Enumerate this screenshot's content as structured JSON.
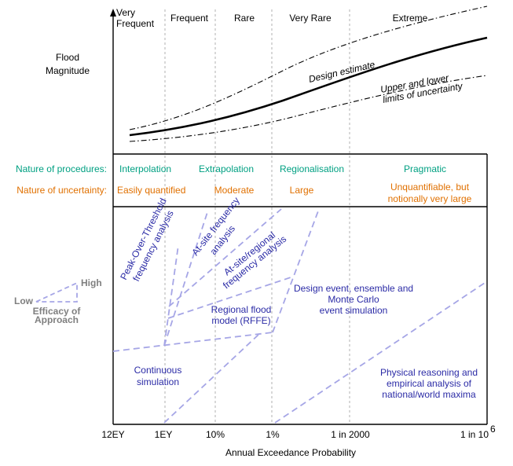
{
  "colors": {
    "procedure": "#00a082",
    "uncertainty": "#e07000",
    "method_text": "#2b2ba6",
    "method_line": "#a6a6e6",
    "legend_text": "#7f7f7f"
  },
  "y_axis": {
    "title": [
      "Flood",
      "Magnitude"
    ]
  },
  "x_axis": {
    "title": "Annual  Exceedance Probability",
    "ticks": [
      "12EY",
      "1EY",
      "10%",
      "1%",
      "1 in 2000",
      "1 in 10"
    ],
    "last_tick_superscript": "6"
  },
  "categories": {
    "very_frequent": [
      "Very",
      "Frequent"
    ],
    "items": [
      "Frequent",
      "Rare",
      "Very Rare",
      "Extreme"
    ]
  },
  "curves": {
    "design_label": "Design estimate",
    "bounds_label": [
      "Upper and lower",
      "limits of uncertainty"
    ]
  },
  "procedures": {
    "label": "Nature of procedures:",
    "items": [
      "Interpolation",
      "Extrapolation",
      "Regionalisation",
      "Pragmatic"
    ]
  },
  "uncertainty": {
    "label": "Nature of uncertainty:",
    "items": [
      "Easily quantified",
      "Moderate",
      "Large"
    ],
    "last": [
      "Unquantifiable, but",
      "notionally very large"
    ]
  },
  "methods": {
    "pot": [
      "Peak-Over-Threshold",
      "frequency analysis"
    ],
    "at_site": [
      "At-site frequency",
      "analysis"
    ],
    "at_site_regional": [
      "At-site/regional",
      "frequency analysis"
    ],
    "rffe": [
      "Regional flood",
      "model (RFFE)"
    ],
    "design_event": [
      "Design event, ensemble and",
      "Monte Carlo",
      "event simulation"
    ],
    "continuous": [
      "Continuous",
      "simulation"
    ],
    "physical": [
      "Physical reasoning and",
      "empirical analysis of",
      "national/world maxima"
    ]
  },
  "legend": {
    "low": "Low",
    "high": "High",
    "caption": [
      "Efficacy  of",
      "Approach"
    ]
  }
}
